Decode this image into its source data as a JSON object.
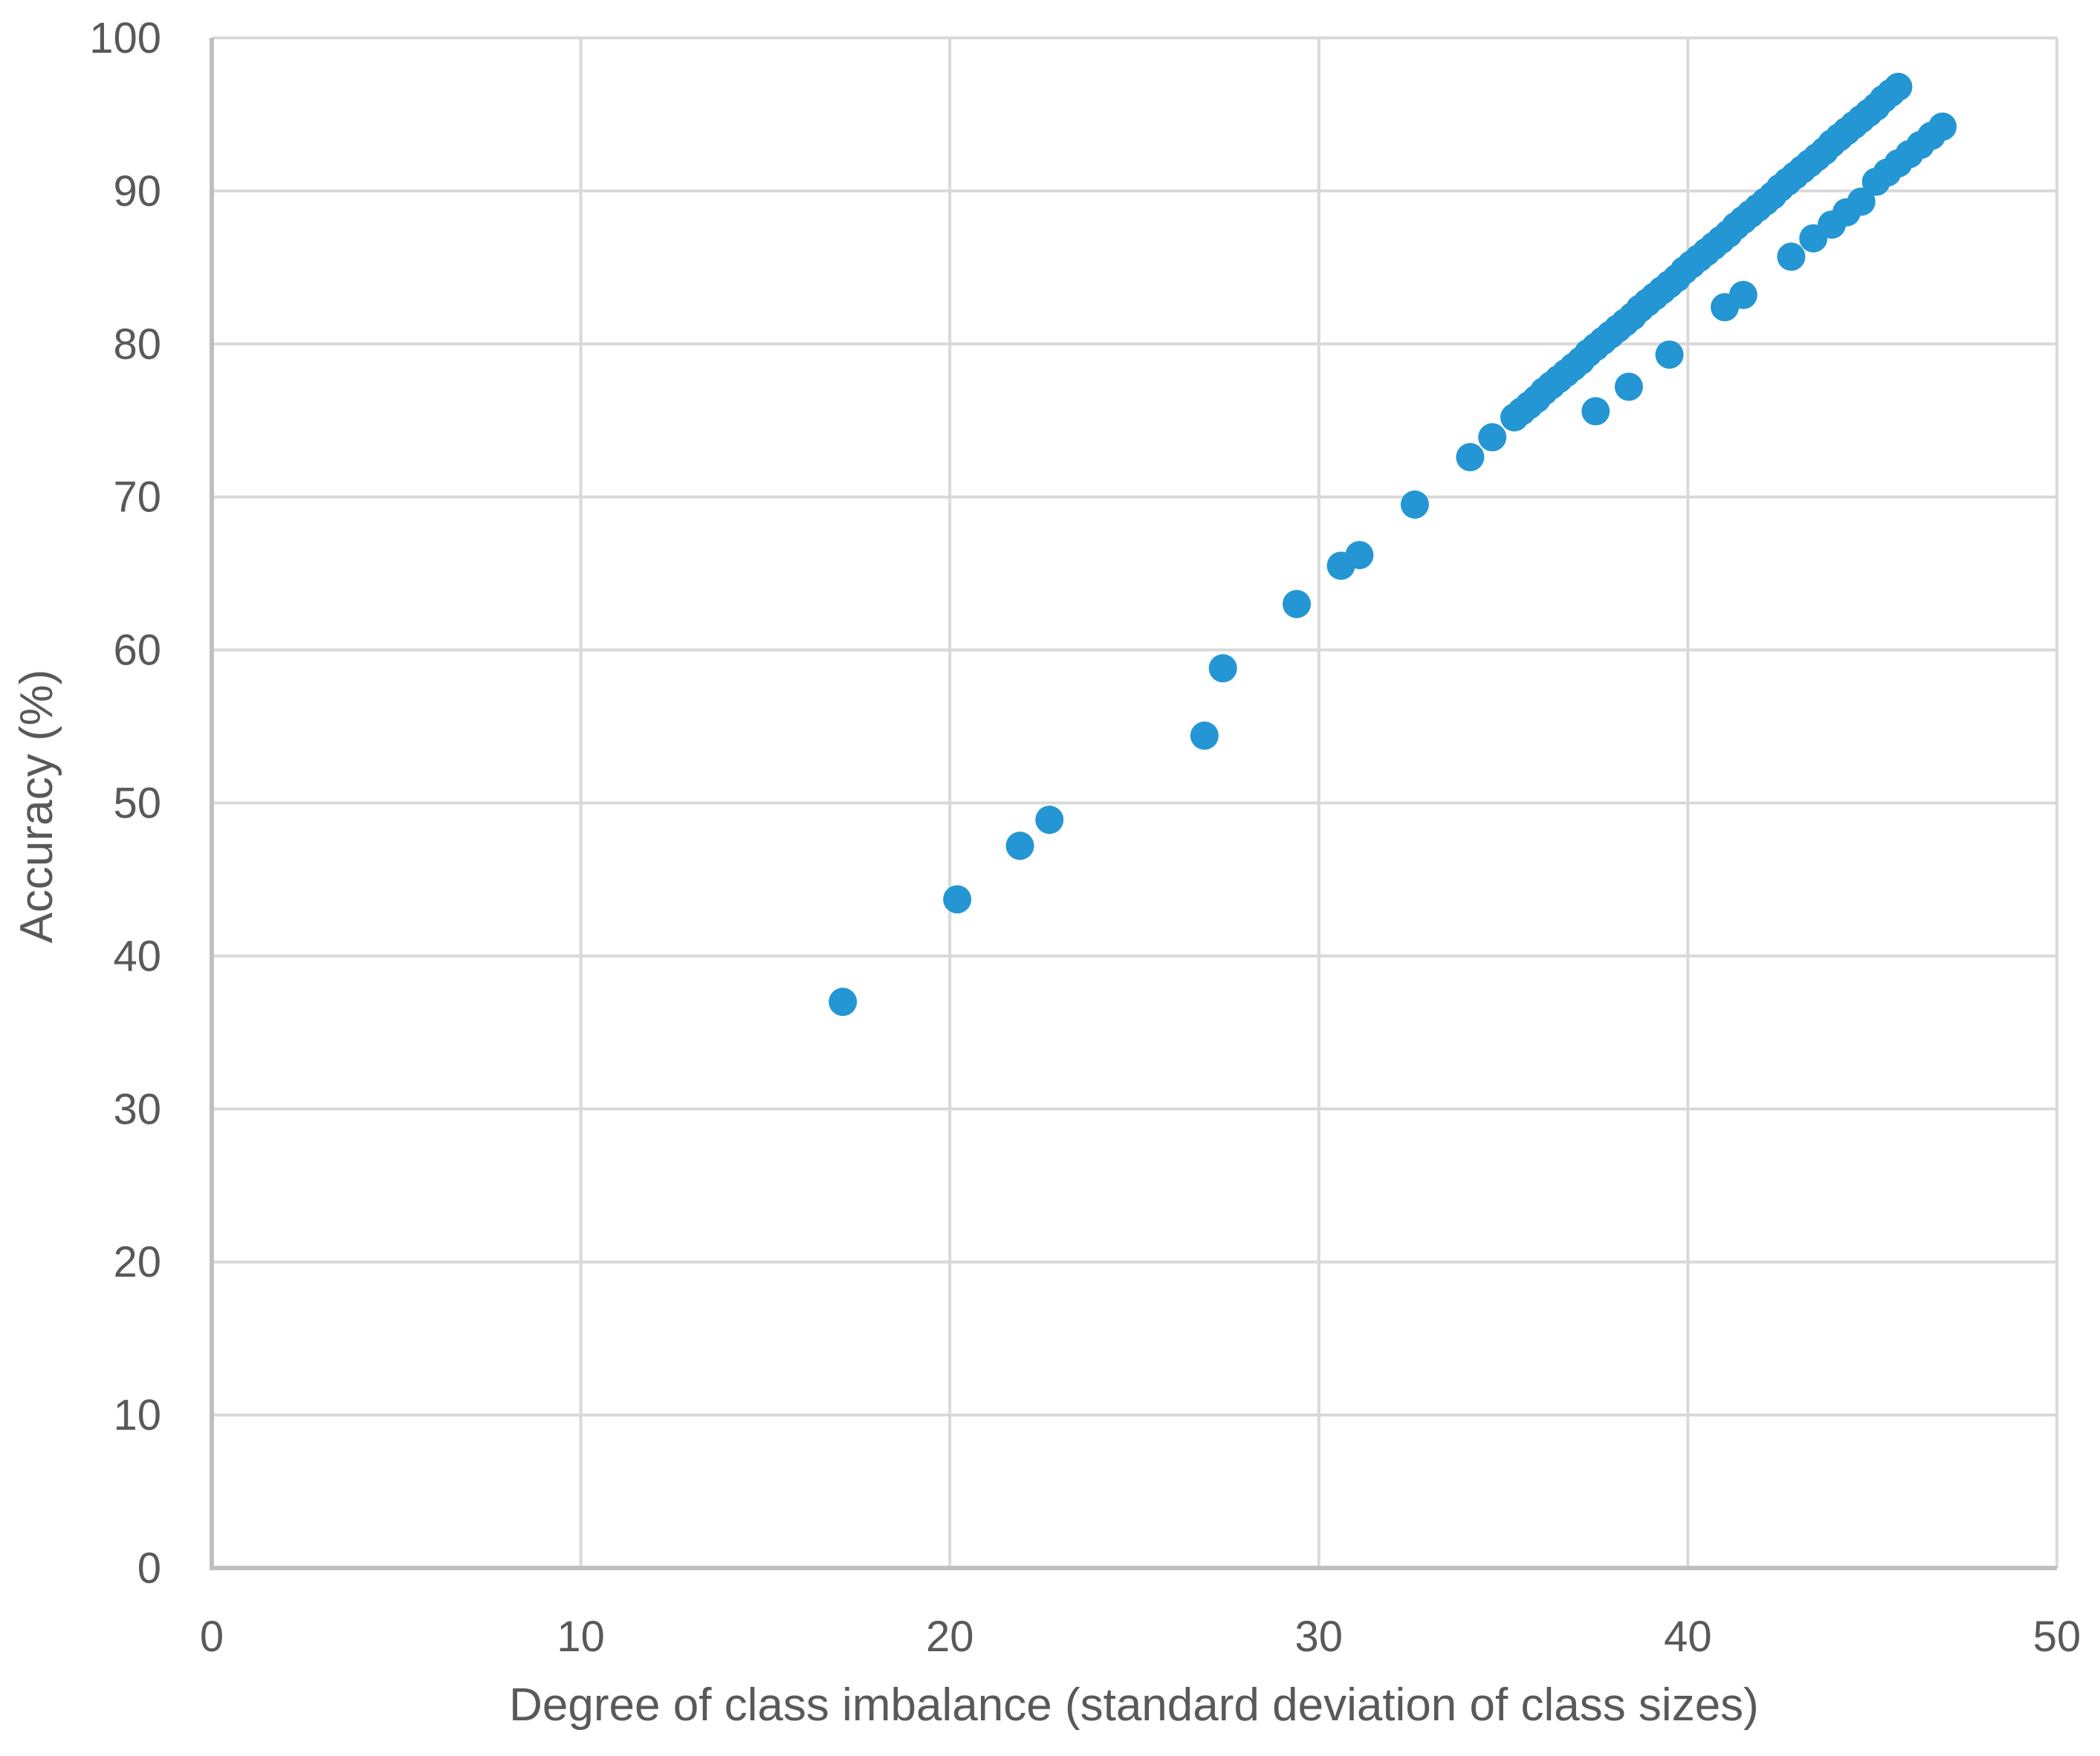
{
  "chart_data": {
    "type": "scatter",
    "title": "",
    "xlabel": "Degree of class imbalance (standard deviation of class sizes)",
    "ylabel": "Accuracy (%)",
    "xlim": [
      0,
      50
    ],
    "ylim": [
      0,
      100
    ],
    "x_ticks": [
      0,
      10,
      20,
      30,
      40,
      50
    ],
    "y_ticks": [
      0,
      10,
      20,
      30,
      40,
      50,
      60,
      70,
      80,
      90,
      100
    ],
    "grid": "both",
    "legend": "none",
    "marker": {
      "shape": "circle",
      "radius_px": 19,
      "color": "#2396d3"
    },
    "colors": {
      "marker": "#2396d3",
      "gridline": "#d9d9d9",
      "axis_line": "#bfbfbf",
      "tick_label": "#595959",
      "axis_title": "#595959",
      "background": "#ffffff"
    },
    "series": [
      {
        "name": "low-scattered-points",
        "points": [
          [
            17.1,
            37.0
          ],
          [
            20.2,
            43.7
          ],
          [
            21.9,
            47.2
          ],
          [
            22.7,
            48.9
          ],
          [
            26.9,
            54.4
          ],
          [
            27.4,
            58.8
          ],
          [
            29.4,
            63.0
          ],
          [
            30.6,
            65.5
          ],
          [
            31.1,
            66.2
          ],
          [
            32.6,
            69.5
          ],
          [
            34.1,
            72.6
          ],
          [
            34.7,
            73.9
          ]
        ]
      },
      {
        "name": "upper-dense-run",
        "points": [
          [
            35.3,
            75.2
          ],
          [
            35.5,
            75.6
          ],
          [
            35.7,
            76.0
          ],
          [
            35.9,
            76.4
          ],
          [
            36.1,
            76.9
          ],
          [
            36.3,
            77.3
          ],
          [
            36.5,
            77.7
          ],
          [
            36.7,
            78.1
          ],
          [
            36.9,
            78.5
          ],
          [
            37.1,
            78.9
          ],
          [
            37.3,
            79.4
          ],
          [
            37.5,
            79.8
          ],
          [
            37.7,
            80.2
          ],
          [
            37.9,
            80.6
          ],
          [
            38.1,
            81.0
          ],
          [
            38.3,
            81.4
          ],
          [
            38.5,
            81.8
          ],
          [
            38.7,
            82.3
          ],
          [
            38.9,
            82.7
          ],
          [
            39.1,
            83.1
          ],
          [
            39.3,
            83.5
          ],
          [
            39.5,
            83.9
          ],
          [
            39.7,
            84.3
          ],
          [
            39.9,
            84.8
          ],
          [
            40.1,
            85.2
          ],
          [
            40.3,
            85.6
          ],
          [
            40.5,
            86.0
          ],
          [
            40.7,
            86.4
          ],
          [
            40.9,
            86.8
          ],
          [
            41.1,
            87.2
          ],
          [
            41.3,
            87.7
          ],
          [
            41.5,
            88.1
          ],
          [
            41.7,
            88.5
          ],
          [
            41.9,
            88.9
          ],
          [
            42.1,
            89.3
          ],
          [
            42.3,
            89.7
          ],
          [
            42.5,
            90.2
          ],
          [
            42.7,
            90.6
          ],
          [
            42.9,
            91.0
          ],
          [
            43.1,
            91.4
          ],
          [
            43.3,
            91.8
          ],
          [
            43.5,
            92.2
          ],
          [
            43.7,
            92.6
          ],
          [
            43.9,
            93.1
          ],
          [
            44.1,
            93.5
          ],
          [
            44.3,
            93.9
          ],
          [
            44.5,
            94.3
          ],
          [
            44.7,
            94.7
          ],
          [
            44.9,
            95.1
          ],
          [
            45.1,
            95.5
          ],
          [
            45.3,
            96.0
          ],
          [
            45.5,
            96.4
          ],
          [
            45.7,
            96.8
          ]
        ]
      },
      {
        "name": "lower-run",
        "points": [
          [
            37.5,
            75.6
          ],
          [
            38.4,
            77.2
          ],
          [
            39.5,
            79.3
          ],
          [
            41.0,
            82.4
          ],
          [
            41.5,
            83.2
          ],
          [
            42.8,
            85.7
          ],
          [
            43.4,
            86.9
          ],
          [
            43.9,
            87.8
          ],
          [
            44.3,
            88.6
          ],
          [
            44.7,
            89.3
          ],
          [
            45.1,
            90.6
          ],
          [
            45.4,
            91.2
          ],
          [
            45.7,
            91.8
          ],
          [
            46.0,
            92.4
          ],
          [
            46.3,
            93.0
          ],
          [
            46.6,
            93.6
          ],
          [
            46.9,
            94.2
          ]
        ]
      }
    ]
  }
}
